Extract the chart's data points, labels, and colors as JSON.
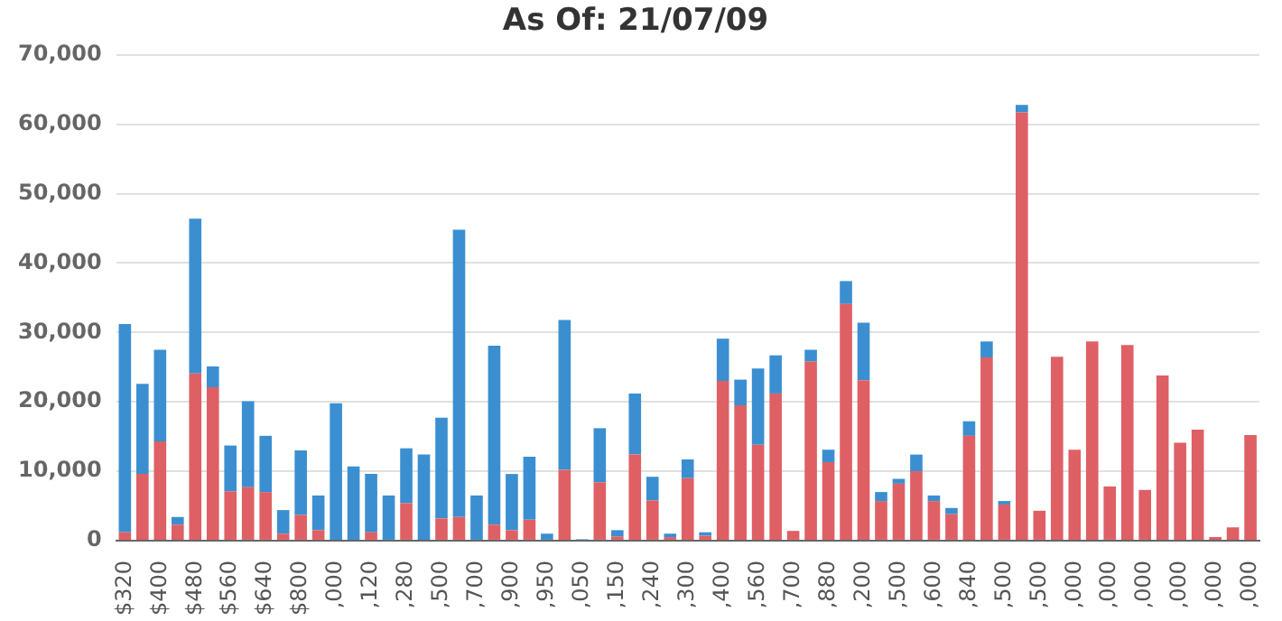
{
  "chart_data": {
    "type": "bar",
    "title": "As Of: 21/07/09",
    "stacked": true,
    "grid": "y",
    "legend": false,
    "categories": [
      "$320",
      null,
      "$400",
      null,
      "$480",
      null,
      "$560",
      null,
      "$640",
      null,
      "$800",
      null,
      ",000",
      null,
      ",120",
      null,
      ",280",
      null,
      ",500",
      null,
      ",700",
      null,
      ",900",
      null,
      ",950",
      null,
      ",050",
      null,
      ",150",
      null,
      ",240",
      null,
      ",300",
      null,
      ",400",
      null,
      ",560",
      null,
      ",700",
      null,
      ",880",
      null,
      ",200",
      null,
      ",500",
      null,
      ",600",
      null,
      ",840",
      null,
      ",500",
      null,
      ",500",
      null,
      ",000",
      null,
      ",000",
      null,
      ",000",
      null,
      ",000",
      null,
      ",000",
      null,
      ",000"
    ],
    "ylim": [
      0,
      70000
    ],
    "yticks": [
      {
        "value": 0,
        "label": "0"
      },
      {
        "value": 10000,
        "label": "10,000"
      },
      {
        "value": 20000,
        "label": "20,000"
      },
      {
        "value": 30000,
        "label": "30,000"
      },
      {
        "value": 40000,
        "label": "40,000"
      },
      {
        "value": 50000,
        "label": "50,000"
      },
      {
        "value": 60000,
        "label": "60,000"
      },
      {
        "value": 70000,
        "label": "70,000"
      }
    ],
    "series": [
      {
        "color": "#de6065",
        "values": [
          1200,
          9600,
          14300,
          2300,
          24100,
          22100,
          7100,
          7700,
          7000,
          1000,
          3700,
          1500,
          0,
          0,
          1200,
          0,
          5400,
          0,
          3200,
          3400,
          0,
          2300,
          1500,
          3000,
          0,
          10200,
          0,
          8400,
          600,
          12400,
          5800,
          500,
          9000,
          700,
          23000,
          19500,
          13800,
          21200,
          1400,
          25800,
          11300,
          34100,
          23100,
          5700,
          8200,
          10000,
          5700,
          3800,
          15100,
          26400,
          5200,
          61700,
          4300,
          26500,
          13100,
          28700,
          7800,
          28200,
          7300,
          23800,
          14100,
          16000,
          500,
          1900,
          15200
        ]
      },
      {
        "color": "#3b8fd1",
        "values": [
          30000,
          13000,
          13200,
          1100,
          22300,
          3000,
          6600,
          12400,
          8100,
          3400,
          9300,
          5000,
          19800,
          10700,
          8400,
          6500,
          7900,
          12400,
          14500,
          41400,
          6500,
          25800,
          8100,
          9100,
          1000,
          21600,
          200,
          7800,
          900,
          8800,
          3400,
          500,
          2700,
          500,
          6100,
          3700,
          11000,
          5500,
          0,
          1700,
          1800,
          3300,
          8300,
          1300,
          700,
          2400,
          800,
          900,
          2100,
          2300,
          500,
          1100,
          0,
          0,
          0,
          0,
          0,
          0,
          0,
          0,
          0,
          0,
          0,
          0,
          0
        ]
      }
    ]
  }
}
